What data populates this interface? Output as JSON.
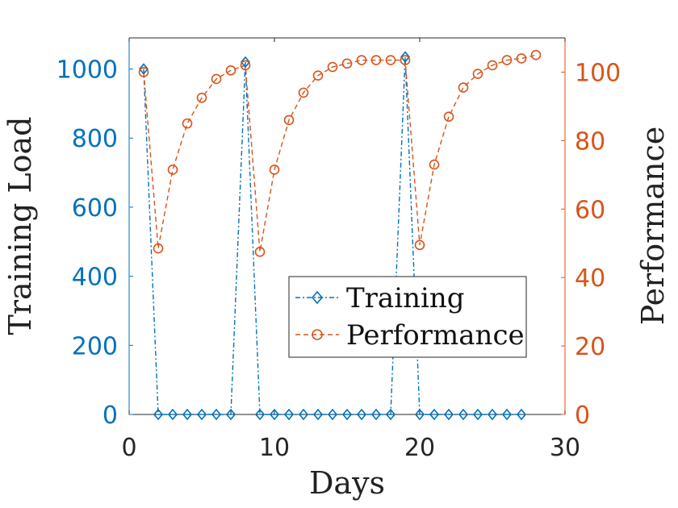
{
  "chart_data": {
    "type": "line",
    "title": "",
    "xlabel": "Days",
    "ylabel_left": "Training Load",
    "ylabel_right": "Performance",
    "xlim": [
      0,
      30
    ],
    "ylim_left": [
      0,
      1090
    ],
    "ylim_right": [
      0,
      110
    ],
    "xticks": [
      0,
      10,
      20,
      30
    ],
    "yticks_left": [
      0,
      200,
      400,
      600,
      800,
      1000
    ],
    "yticks_right": [
      0,
      20,
      40,
      60,
      80,
      100
    ],
    "grid": false,
    "legend_position": "center-right",
    "colors": {
      "training": "#0072BD",
      "performance": "#D95319",
      "axis": "#262626"
    },
    "series": [
      {
        "name": "Training",
        "axis": "left",
        "marker": "diamond",
        "line_style": "dash-dot",
        "x": [
          1,
          2,
          3,
          4,
          5,
          6,
          7,
          8,
          9,
          10,
          11,
          12,
          13,
          14,
          15,
          16,
          17,
          18,
          19,
          20,
          21,
          22,
          23,
          24,
          25,
          26,
          27
        ],
        "values": [
          1000,
          0,
          0,
          0,
          0,
          0,
          0,
          1020,
          0,
          0,
          0,
          0,
          0,
          0,
          0,
          0,
          0,
          0,
          1035,
          0,
          0,
          0,
          0,
          0,
          0,
          0,
          0
        ]
      },
      {
        "name": "Performance",
        "axis": "right",
        "marker": "circle",
        "line_style": "dashed",
        "x": [
          1,
          2,
          3,
          4,
          5,
          6,
          7,
          8,
          9,
          10,
          11,
          12,
          13,
          14,
          15,
          16,
          17,
          18,
          19,
          20,
          21,
          22,
          23,
          24,
          25,
          26,
          27,
          28
        ],
        "values": [
          100,
          48.5,
          71.5,
          85,
          92.5,
          98,
          100.5,
          102,
          47.5,
          71.5,
          86,
          94,
          99,
          101.5,
          102.5,
          103.5,
          103.5,
          103.5,
          103.5,
          49.5,
          73,
          87,
          95.5,
          99.5,
          102,
          103.5,
          104,
          105
        ]
      }
    ]
  }
}
